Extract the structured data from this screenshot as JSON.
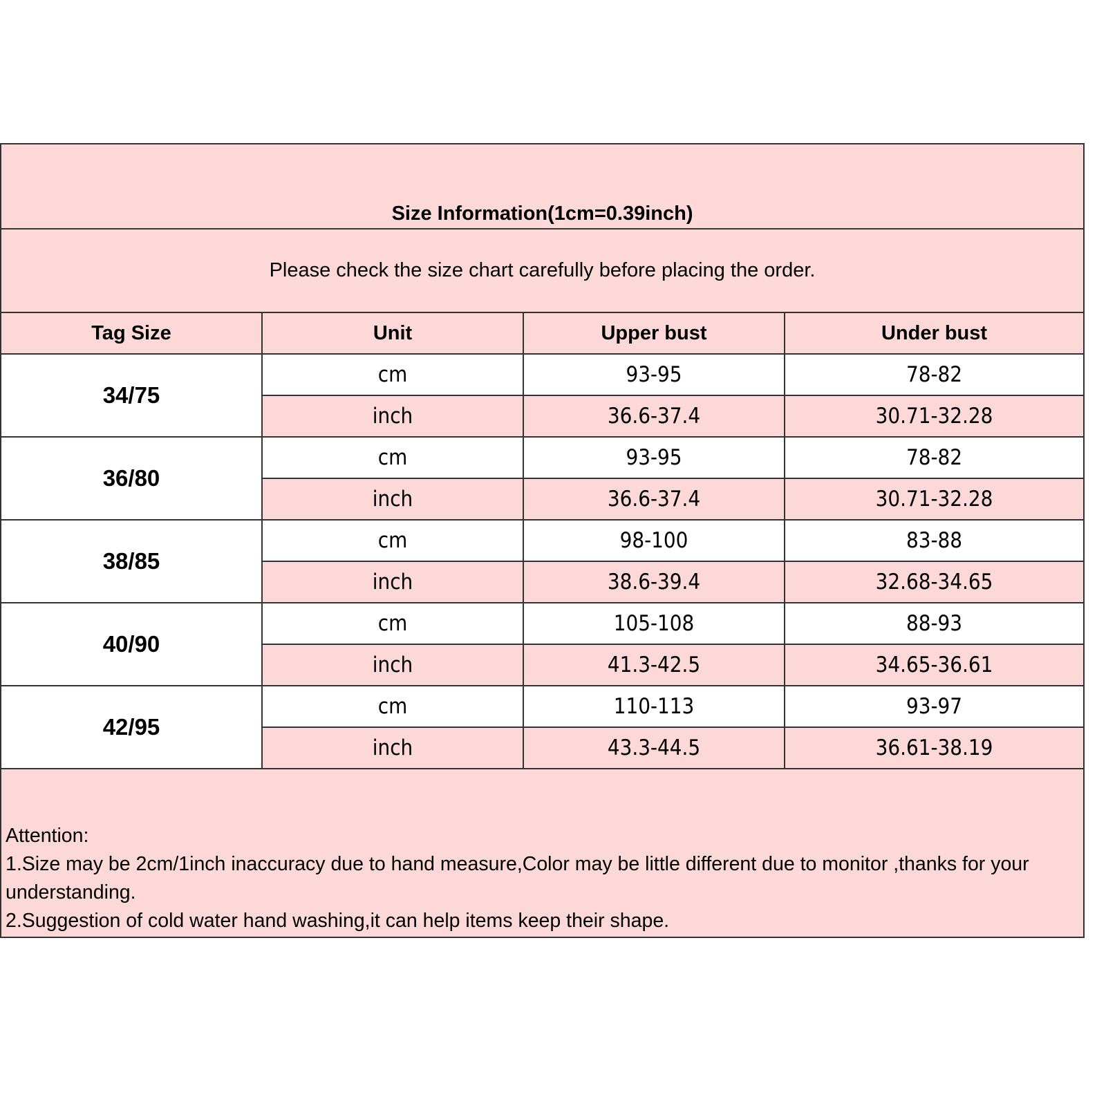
{
  "title": "Size Information(1cm=0.39inch)",
  "note": "Please check the size chart carefully before placing the order.",
  "colors": {
    "pink": "#fcd9d8",
    "border": "#333333"
  },
  "headers": [
    "Tag Size",
    "Unit",
    "Upper bust",
    "Under bust"
  ],
  "sizes": [
    {
      "tag": "34/75",
      "rows": [
        {
          "unit": "cm",
          "upper": "93-95",
          "under": "78-82"
        },
        {
          "unit": "inch",
          "upper": "36.6-37.4",
          "under": "30.71-32.28"
        }
      ]
    },
    {
      "tag": "36/80",
      "rows": [
        {
          "unit": "cm",
          "upper": "93-95",
          "under": "78-82"
        },
        {
          "unit": "inch",
          "upper": "36.6-37.4",
          "under": "30.71-32.28"
        }
      ]
    },
    {
      "tag": "38/85",
      "rows": [
        {
          "unit": "cm",
          "upper": "98-100",
          "under": "83-88"
        },
        {
          "unit": "inch",
          "upper": "38.6-39.4",
          "under": "32.68-34.65"
        }
      ]
    },
    {
      "tag": "40/90",
      "rows": [
        {
          "unit": "cm",
          "upper": "105-108",
          "under": "88-93"
        },
        {
          "unit": "inch",
          "upper": "41.3-42.5",
          "under": "34.65-36.61"
        }
      ]
    },
    {
      "tag": "42/95",
      "rows": [
        {
          "unit": "cm",
          "upper": "110-113",
          "under": "93-97"
        },
        {
          "unit": "inch",
          "upper": "43.3-44.5",
          "under": "36.61-38.19"
        }
      ]
    }
  ],
  "attention": {
    "heading": "Attention:",
    "lines": [
      "1.Size may be 2cm/1inch inaccuracy due to hand measure,Color may be little different due to monitor ,thanks for your understanding.",
      "2.Suggestion of cold water hand washing,it can help items keep their shape."
    ]
  }
}
